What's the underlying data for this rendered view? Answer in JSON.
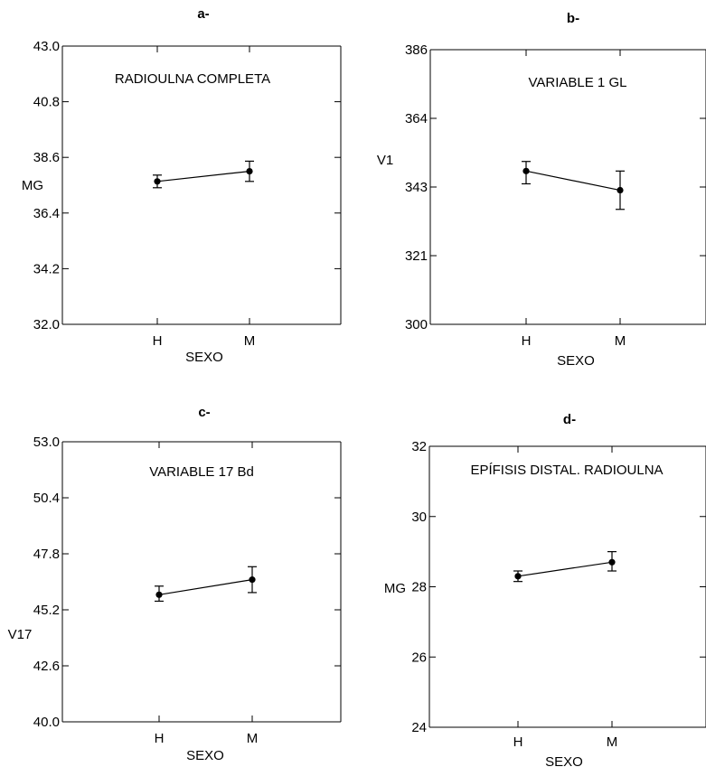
{
  "chart_data": [
    {
      "panel": "a-",
      "type": "line",
      "title": "RADIOULNA COMPLETA",
      "xlabel": "SEXO",
      "ylabel": "MG",
      "categories": [
        "H",
        "M"
      ],
      "values": [
        37.65,
        38.05
      ],
      "err_low": [
        37.4,
        37.65
      ],
      "err_high": [
        37.9,
        38.45
      ],
      "ylim": [
        32.0,
        43.0
      ],
      "yticks": [
        "32.0",
        "34.2",
        "36.4",
        "38.6",
        "40.8",
        "43.0"
      ]
    },
    {
      "panel": "b-",
      "type": "line",
      "title": "VARIABLE 1 GL",
      "xlabel": "SEXO",
      "ylabel": "V1",
      "categories": [
        "H",
        "M"
      ],
      "values": [
        348,
        342
      ],
      "err_low": [
        344,
        336
      ],
      "err_high": [
        351,
        348
      ],
      "ylim": [
        300,
        386
      ],
      "yticks": [
        "300",
        "321",
        "343",
        "364",
        "386"
      ]
    },
    {
      "panel": "c-",
      "type": "line",
      "title": "VARIABLE 17 Bd",
      "xlabel": "SEXO",
      "ylabel": "V17",
      "categories": [
        "H",
        "M"
      ],
      "values": [
        45.9,
        46.6
      ],
      "err_low": [
        45.6,
        46.0
      ],
      "err_high": [
        46.3,
        47.2
      ],
      "ylim": [
        40.0,
        53.0
      ],
      "yticks": [
        "40.0",
        "42.6",
        "45.2",
        "47.8",
        "50.4",
        "53.0"
      ]
    },
    {
      "panel": "d-",
      "type": "line",
      "title": "EPÍFISIS DISTAL. RADIOULNA",
      "xlabel": "SEXO",
      "ylabel": "MG",
      "categories": [
        "H",
        "M"
      ],
      "values": [
        28.3,
        28.7
      ],
      "err_low": [
        28.15,
        28.45
      ],
      "err_high": [
        28.45,
        29.0
      ],
      "ylim": [
        24,
        32
      ],
      "yticks": [
        "24",
        "26",
        "28",
        "30",
        "32"
      ]
    }
  ]
}
